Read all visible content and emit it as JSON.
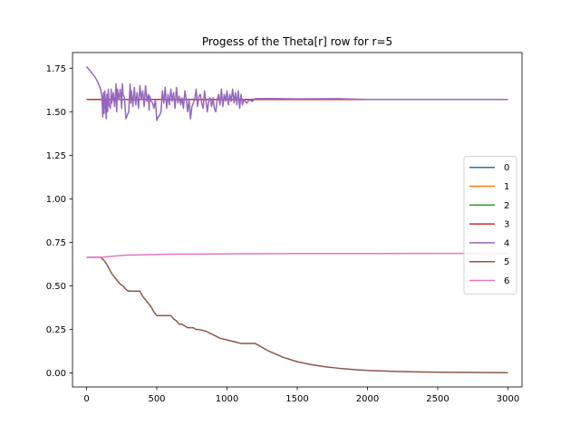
{
  "chart_data": {
    "type": "line",
    "title": "Progess of the Theta[r] row for r=5",
    "xlabel": "",
    "ylabel": "",
    "xlim": [
      -100,
      3100
    ],
    "ylim": [
      -0.08,
      1.84
    ],
    "xticks": [
      0,
      500,
      1000,
      1500,
      2000,
      2500,
      3000
    ],
    "yticks": [
      0.0,
      0.25,
      0.5,
      0.75,
      1.0,
      1.25,
      1.5,
      1.75
    ],
    "ytick_labels": [
      "0.00",
      "0.25",
      "0.50",
      "0.75",
      "1.00",
      "1.25",
      "1.50",
      "1.75"
    ],
    "grid": false,
    "legend": {
      "placement": "center-right"
    },
    "series": [
      {
        "name": "0",
        "color": "#1f77b4",
        "x": [
          0,
          3000
        ],
        "y": [
          1.5708,
          1.5708
        ]
      },
      {
        "name": "1",
        "color": "#ff7f0e",
        "x": [
          0,
          3000
        ],
        "y": [
          1.5708,
          1.5708
        ]
      },
      {
        "name": "2",
        "color": "#2ca02c",
        "x": [
          0,
          3000
        ],
        "y": [
          1.5708,
          1.5708
        ]
      },
      {
        "name": "3",
        "color": "#d62728",
        "x": [
          0,
          3000
        ],
        "y": [
          1.5708,
          1.5708
        ]
      },
      {
        "name": "4",
        "color": "#9467bd",
        "x": [
          0,
          20,
          40,
          60,
          80,
          100,
          110,
          115,
          120,
          125,
          130,
          140,
          145,
          150,
          155,
          160,
          170,
          175,
          180,
          190,
          200,
          210,
          215,
          220,
          230,
          240,
          250,
          255,
          260,
          270,
          280,
          290,
          300,
          310,
          315,
          320,
          330,
          340,
          350,
          360,
          370,
          380,
          390,
          400,
          410,
          420,
          430,
          440,
          445,
          450,
          460,
          470,
          480,
          490,
          500,
          510,
          520,
          530,
          540,
          550,
          560,
          570,
          580,
          590,
          600,
          610,
          620,
          630,
          640,
          650,
          660,
          670,
          680,
          690,
          700,
          710,
          720,
          730,
          740,
          750,
          760,
          770,
          780,
          790,
          800,
          810,
          820,
          830,
          840,
          850,
          860,
          870,
          880,
          890,
          900,
          910,
          920,
          930,
          940,
          950,
          960,
          970,
          980,
          990,
          1000,
          1010,
          1020,
          1030,
          1040,
          1050,
          1060,
          1070,
          1080,
          1090,
          1100,
          1110,
          1120,
          1140,
          1160,
          1180,
          1200,
          1300,
          1500,
          1800,
          2000,
          2500,
          3000
        ],
        "y": [
          1.76,
          1.74,
          1.72,
          1.7,
          1.67,
          1.63,
          1.58,
          1.47,
          1.61,
          1.49,
          1.62,
          1.46,
          1.6,
          1.5,
          1.63,
          1.54,
          1.52,
          1.63,
          1.55,
          1.61,
          1.53,
          1.66,
          1.5,
          1.63,
          1.57,
          1.63,
          1.52,
          1.66,
          1.6,
          1.58,
          1.46,
          1.48,
          1.5,
          1.66,
          1.55,
          1.62,
          1.53,
          1.64,
          1.54,
          1.61,
          1.52,
          1.65,
          1.57,
          1.62,
          1.53,
          1.65,
          1.56,
          1.6,
          1.51,
          1.59,
          1.56,
          1.55,
          1.52,
          1.57,
          1.45,
          1.47,
          1.48,
          1.5,
          1.62,
          1.55,
          1.64,
          1.52,
          1.6,
          1.54,
          1.63,
          1.56,
          1.61,
          1.52,
          1.64,
          1.55,
          1.59,
          1.54,
          1.58,
          1.52,
          1.62,
          1.57,
          1.5,
          1.57,
          1.46,
          1.53,
          1.55,
          1.57,
          1.63,
          1.53,
          1.59,
          1.6,
          1.55,
          1.52,
          1.62,
          1.56,
          1.5,
          1.57,
          1.58,
          1.53,
          1.58,
          1.52,
          1.5,
          1.57,
          1.6,
          1.54,
          1.63,
          1.53,
          1.6,
          1.56,
          1.62,
          1.54,
          1.6,
          1.56,
          1.63,
          1.55,
          1.61,
          1.54,
          1.62,
          1.52,
          1.6,
          1.54,
          1.57,
          1.55,
          1.57,
          1.56,
          1.575,
          1.576,
          1.574,
          1.575,
          1.5708,
          1.5708,
          1.5708
        ]
      },
      {
        "name": "5",
        "color": "#8c564b",
        "x": [
          0,
          100,
          120,
          140,
          160,
          180,
          200,
          220,
          240,
          260,
          280,
          300,
          380,
          400,
          420,
          440,
          460,
          480,
          500,
          600,
          620,
          640,
          660,
          680,
          700,
          720,
          760,
          780,
          800,
          850,
          900,
          950,
          1000,
          1050,
          1100,
          1150,
          1200,
          1300,
          1400,
          1500,
          1600,
          1700,
          1800,
          1900,
          2000,
          2200,
          2400,
          2600,
          2800,
          3000
        ],
        "y": [
          0.665,
          0.665,
          0.65,
          0.63,
          0.6,
          0.57,
          0.55,
          0.53,
          0.51,
          0.5,
          0.48,
          0.47,
          0.47,
          0.44,
          0.42,
          0.4,
          0.38,
          0.35,
          0.33,
          0.33,
          0.31,
          0.3,
          0.28,
          0.28,
          0.27,
          0.26,
          0.26,
          0.25,
          0.25,
          0.24,
          0.22,
          0.2,
          0.19,
          0.18,
          0.17,
          0.17,
          0.17,
          0.125,
          0.09,
          0.065,
          0.048,
          0.036,
          0.027,
          0.02,
          0.015,
          0.009,
          0.006,
          0.004,
          0.003,
          0.002
        ]
      },
      {
        "name": "6",
        "color": "#e377c2",
        "x": [
          0,
          100,
          150,
          200,
          250,
          300,
          400,
          500,
          600,
          800,
          1000,
          1200,
          1500,
          2000,
          2500,
          3000
        ],
        "y": [
          0.665,
          0.665,
          0.668,
          0.672,
          0.675,
          0.677,
          0.679,
          0.681,
          0.682,
          0.683,
          0.684,
          0.685,
          0.686,
          0.686,
          0.687,
          0.687
        ]
      }
    ]
  }
}
